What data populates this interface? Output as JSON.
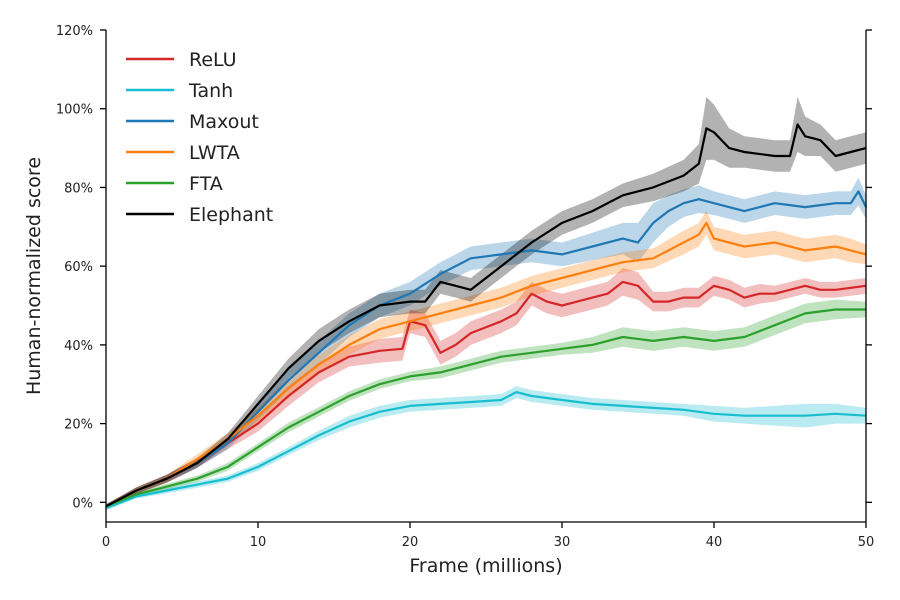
{
  "chart_data": {
    "type": "line",
    "title": "",
    "xlabel": "Frame (millions)",
    "ylabel": "Human-normalized score",
    "xlim": [
      0,
      50
    ],
    "ylim": [
      -5,
      120
    ],
    "x_ticks": [
      0,
      10,
      20,
      30,
      40,
      50
    ],
    "x_tick_labels": [
      "0",
      "10",
      "20",
      "30",
      "40",
      "50"
    ],
    "y_ticks": [
      0,
      20,
      40,
      60,
      80,
      100,
      120
    ],
    "y_tick_labels": [
      "0%",
      "20%",
      "40%",
      "60%",
      "80%",
      "100%",
      "120%"
    ],
    "grid": false,
    "legend_position": "top-left",
    "series": [
      {
        "name": "ReLU",
        "color": "#d62728",
        "x": [
          0,
          2,
          4,
          6,
          8,
          10,
          12,
          14,
          16,
          18,
          19.5,
          20,
          21,
          22,
          23,
          24,
          26,
          27,
          28,
          29,
          30,
          31,
          32,
          33,
          34,
          35,
          36,
          37,
          38,
          39,
          40,
          41,
          42,
          43,
          44,
          45,
          46,
          47,
          48,
          49,
          50
        ],
        "values": [
          -1,
          3,
          6,
          10,
          15,
          20,
          27,
          33,
          37,
          38.5,
          39,
          46,
          45,
          38,
          40,
          43,
          46,
          48,
          53,
          51,
          50,
          51,
          52,
          53,
          56,
          55,
          51,
          51,
          52,
          52,
          55,
          54,
          52,
          53,
          53,
          54,
          55,
          54,
          54,
          54.5,
          55
        ],
        "spread": [
          0.5,
          0.8,
          1,
          1.2,
          1.5,
          2,
          2.5,
          2.5,
          2.5,
          3,
          3,
          3,
          3,
          3,
          3,
          3,
          3,
          3,
          3,
          3,
          3,
          3,
          3,
          3,
          3.5,
          3.5,
          2.5,
          2.5,
          2.5,
          2.5,
          2.5,
          2.5,
          2.5,
          2.5,
          2,
          2,
          2,
          2,
          2,
          2,
          2
        ]
      },
      {
        "name": "Tanh",
        "color": "#17becf",
        "x": [
          0,
          2,
          4,
          6,
          8,
          10,
          12,
          14,
          16,
          18,
          20,
          22,
          24,
          26,
          27,
          28,
          29,
          30,
          32,
          34,
          36,
          38,
          40,
          42,
          44,
          46,
          48,
          50
        ],
        "values": [
          -1.5,
          1.5,
          3,
          4.5,
          6,
          9,
          13,
          17,
          20.5,
          23,
          24.5,
          25,
          25.5,
          26,
          28,
          27,
          26.5,
          26,
          25,
          24.5,
          24,
          23.5,
          22.5,
          22,
          22,
          22,
          22.5,
          22
        ],
        "spread": [
          0.5,
          0.5,
          0.7,
          0.8,
          0.8,
          1,
          1,
          1.2,
          1.5,
          1.5,
          1.5,
          1.5,
          1.5,
          1.5,
          1.5,
          1.5,
          1.5,
          1.5,
          1.5,
          1.5,
          1.5,
          1.5,
          2,
          2,
          2.5,
          3,
          2.5,
          2
        ]
      },
      {
        "name": "Maxout",
        "color": "#1f77b4",
        "x": [
          0,
          2,
          4,
          6,
          8,
          10,
          12,
          14,
          16,
          18,
          20,
          22,
          24,
          26,
          28,
          30,
          32,
          34,
          35,
          36,
          37,
          38,
          39,
          40,
          42,
          44,
          46,
          48,
          49,
          49.5,
          50
        ],
        "values": [
          -1,
          3,
          6,
          10,
          15,
          23,
          31,
          38,
          45,
          50,
          53,
          58,
          62,
          63,
          64,
          63,
          65,
          67,
          66,
          71,
          74,
          76,
          77,
          76,
          74,
          76,
          75,
          76,
          76,
          79,
          75
        ],
        "spread": [
          0.5,
          0.8,
          1,
          1.2,
          1.5,
          2,
          2.5,
          3,
          3,
          3,
          3,
          3,
          3,
          3,
          3,
          3,
          3.5,
          4,
          5,
          5,
          4,
          3.5,
          3.5,
          3,
          3,
          3,
          3,
          3,
          3,
          3.5,
          3
        ]
      },
      {
        "name": "LWTA",
        "color": "#ff7f0e",
        "x": [
          0,
          2,
          4,
          6,
          8,
          10,
          12,
          14,
          16,
          18,
          20,
          21,
          22,
          24,
          26,
          28,
          30,
          32,
          34,
          36,
          38,
          39,
          39.5,
          40,
          42,
          44,
          46,
          48,
          49,
          50
        ],
        "values": [
          -1,
          3,
          6,
          11,
          16,
          22,
          29,
          35,
          40,
          44,
          46,
          47,
          48,
          50,
          52,
          55,
          57,
          59,
          61,
          62,
          66,
          68,
          71,
          67,
          65,
          66,
          64,
          65,
          64,
          63
        ],
        "spread": [
          0.5,
          0.8,
          1,
          1.2,
          1.5,
          2,
          2.5,
          2.5,
          2.5,
          2.5,
          2.5,
          2.5,
          2.5,
          2.5,
          2.5,
          2.5,
          2.5,
          2.5,
          2.5,
          2.5,
          3,
          3,
          3,
          3,
          3,
          3,
          3,
          3,
          3,
          2.5
        ]
      },
      {
        "name": "FTA",
        "color": "#2ca02c",
        "x": [
          0,
          2,
          4,
          6,
          8,
          10,
          12,
          14,
          16,
          18,
          20,
          22,
          24,
          26,
          28,
          30,
          32,
          34,
          36,
          38,
          40,
          42,
          44,
          46,
          48,
          50
        ],
        "values": [
          -1,
          2,
          4,
          6,
          9,
          14,
          19,
          23,
          27,
          30,
          32,
          33,
          35,
          37,
          38,
          39,
          40,
          42,
          41,
          42,
          41,
          42,
          45,
          48,
          49,
          49
        ],
        "spread": [
          0.5,
          0.5,
          0.7,
          0.8,
          1,
          1,
          1.2,
          1.2,
          1.2,
          1.2,
          1.2,
          1.5,
          1.5,
          1.5,
          1.5,
          1.5,
          2,
          2.5,
          2.5,
          2.5,
          2.5,
          2.5,
          2.5,
          2.5,
          2.5,
          2
        ]
      },
      {
        "name": "Elephant",
        "color": "#000000",
        "x": [
          0,
          2,
          4,
          6,
          8,
          10,
          12,
          14,
          16,
          18,
          20,
          21,
          22,
          23,
          24,
          26,
          28,
          30,
          32,
          34,
          36,
          38,
          39,
          39.5,
          40,
          41,
          42,
          44,
          45,
          45.5,
          46,
          47,
          48,
          49,
          50
        ],
        "values": [
          -1,
          3,
          6,
          10,
          16,
          25,
          34,
          41,
          46,
          50,
          51,
          51,
          56,
          55,
          54,
          60,
          66,
          71,
          74,
          78,
          80,
          83,
          86,
          95,
          94,
          90,
          89,
          88,
          88,
          96,
          93,
          92,
          88,
          89,
          90
        ],
        "spread": [
          0.5,
          0.8,
          1,
          1.2,
          1.5,
          2,
          2.5,
          3,
          3,
          3,
          3,
          3,
          3,
          3,
          3,
          3,
          3,
          3,
          3,
          3,
          3.5,
          4,
          5,
          8,
          7,
          5,
          4,
          4,
          4,
          7,
          5,
          4,
          4,
          4,
          4
        ]
      }
    ]
  }
}
